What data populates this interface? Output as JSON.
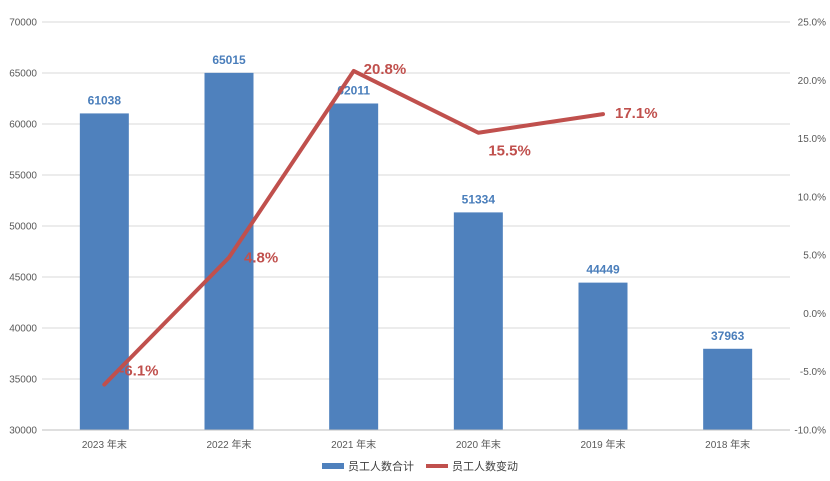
{
  "chart_data": {
    "type": "bar",
    "categories": [
      "2023 年末",
      "2022 年末",
      "2021 年末",
      "2020 年末",
      "2019 年末",
      "2018 年末"
    ],
    "series": [
      {
        "name": "员工人数合计",
        "type": "bar",
        "axis": "left",
        "color": "#4f81bd",
        "values": [
          61038,
          65015,
          62011,
          51334,
          44449,
          37963
        ],
        "labels": [
          "61038",
          "65015",
          "62011",
          "51334",
          "44449",
          "37963"
        ]
      },
      {
        "name": "员工人数变动",
        "type": "line",
        "axis": "right",
        "color": "#c0504d",
        "values": [
          -6.1,
          4.8,
          20.8,
          15.5,
          17.1,
          null
        ],
        "labels": [
          "-6.1%",
          "4.8%",
          "20.8%",
          "15.5%",
          "17.1%",
          ""
        ]
      }
    ],
    "y_left": {
      "min": 30000,
      "max": 70000,
      "step": 5000,
      "ticks": [
        "30000",
        "35000",
        "40000",
        "45000",
        "50000",
        "55000",
        "60000",
        "65000",
        "70000"
      ]
    },
    "y_right": {
      "min": -10,
      "max": 25,
      "step": 5,
      "ticks": [
        "-10.0%",
        "-5.0%",
        "0.0%",
        "5.0%",
        "10.0%",
        "15.0%",
        "20.0%",
        "25.0%"
      ]
    },
    "grid": true,
    "legend_position": "bottom"
  }
}
